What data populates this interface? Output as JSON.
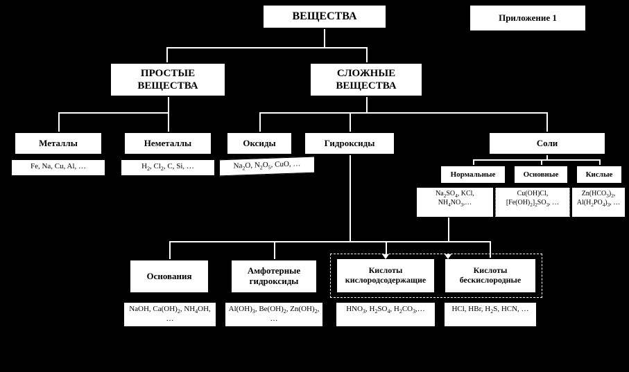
{
  "diagram": {
    "type": "tree",
    "background_color": "#000000",
    "node_fill": "#ffffff",
    "node_border": "#000000",
    "edge_color": "#ffffff",
    "font_family": "Times New Roman",
    "title": "ВЕЩЕСТВА",
    "appendix": "Приложение 1",
    "level2": {
      "simple": "ПРОСТЫЕ ВЕЩЕСТВА",
      "complex": "СЛОЖНЫЕ ВЕЩЕСТВА"
    },
    "categories": {
      "metals": {
        "label": "Металлы",
        "examples": "Fe, Na, Cu, Al, …"
      },
      "nonmetals": {
        "label": "Неметаллы",
        "examples_html": "H<sub>2</sub>, Cl<sub>2</sub>, C, Si, …"
      },
      "oxides": {
        "label": "Оксиды",
        "examples_html": "Na<sub>2</sub>O, N<sub>2</sub>O<sub>5</sub>, CuO, …"
      },
      "hydroxides": {
        "label": "Гидроксиды"
      },
      "salts": {
        "label": "Соли"
      }
    },
    "salts_sub": {
      "normal": {
        "label": "Нормальные",
        "examples_html": "Na<sub>2</sub>SO<sub>4</sub>, KCl, NH<sub>4</sub>NO<sub>3</sub>,…"
      },
      "basic": {
        "label": "Основные",
        "examples_html": "Cu(OH)Cl, [Fe(OH)<sub>2</sub>]<sub>2</sub>SO<sub>3</sub>, …"
      },
      "acid": {
        "label": "Кислые",
        "examples_html": "Zn(HCO<sub>3</sub>)<sub>2</sub>, Al(H<sub>2</sub>PO<sub>4</sub>)<sub>3</sub>, …"
      }
    },
    "hydroxides_sub": {
      "bases": {
        "label": "Основания",
        "examples_html": "NaOH, Ca(OH)<sub>2</sub>, NH<sub>4</sub>OH, …"
      },
      "amphoteric": {
        "label": "Амфотерные гидроксиды",
        "examples_html": "Al(OH)<sub>3</sub>, Be(OH)<sub>2</sub>, Zn(OH)<sub>2</sub>, …"
      },
      "oxyacids": {
        "label": "Кислоты кислородсодержащие",
        "examples_html": "HNO<sub>3</sub>, H<sub>2</sub>SO<sub>4</sub>, H<sub>2</sub>CO<sub>3</sub>,…"
      },
      "nonoxyacids": {
        "label": "Кислоты бескислородные",
        "examples_html": "HCl, HBr, H<sub>2</sub>S, HCN, …"
      }
    }
  }
}
